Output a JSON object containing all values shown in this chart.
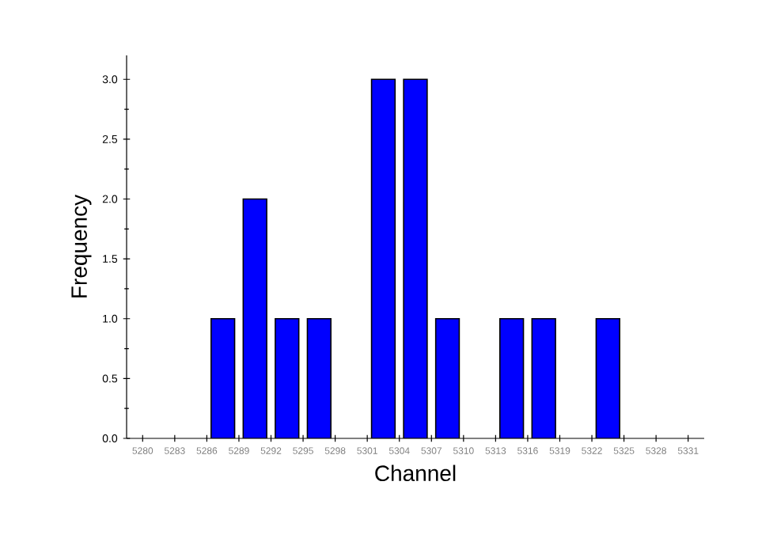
{
  "chart_data": {
    "type": "bar",
    "xlabel": "Channel",
    "ylabel": "Frequency",
    "x": [
      5287.5,
      5290.5,
      5293.5,
      5296.5,
      5302.5,
      5305.5,
      5308.5,
      5314.5,
      5317.5,
      5323.5
    ],
    "values": [
      1,
      2,
      1,
      1,
      3,
      3,
      1,
      1,
      1,
      1
    ],
    "color": "#0000ff",
    "xlim": [
      5278.5,
      5332.5
    ],
    "xticks": [
      5280,
      5283,
      5286,
      5289,
      5292,
      5295,
      5298,
      5301,
      5304,
      5307,
      5310,
      5313,
      5316,
      5319,
      5322,
      5325,
      5328,
      5331
    ],
    "ylim": [
      0,
      3.2
    ],
    "yticks": [
      {
        "value": 0,
        "label": "0.0"
      },
      {
        "value": 0.5,
        "label": "0.5"
      },
      {
        "value": 1,
        "label": "1.0"
      },
      {
        "value": 1.5,
        "label": "1.5"
      },
      {
        "value": 2,
        "label": "2.0"
      },
      {
        "value": 2.5,
        "label": "2.5"
      },
      {
        "value": 3,
        "label": "3.0"
      }
    ]
  }
}
